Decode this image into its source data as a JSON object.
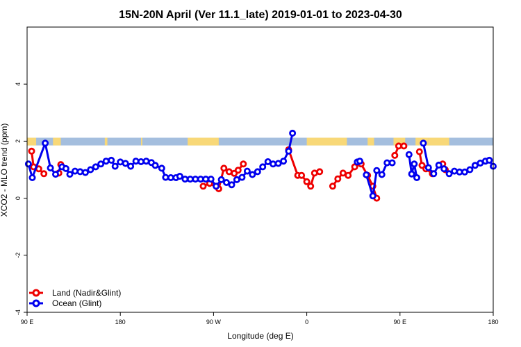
{
  "chart_data": {
    "type": "line",
    "title": "15N-20N April (Ver 11.1_late)   2019-01-01 to 2023-04-30",
    "xlabel": "Longitude (deg E)",
    "ylabel": "XCO2 - MLO trend (ppm)",
    "xlim": [
      90,
      450
    ],
    "ylim": [
      -4,
      6
    ],
    "x_ticks": [
      {
        "value": 90,
        "label": "90 E"
      },
      {
        "value": 162,
        "label": "180"
      },
      {
        "value": 234,
        "label": "90 W"
      },
      {
        "value": 306,
        "label": "0"
      },
      {
        "value": 378,
        "label": "90 E"
      },
      {
        "value": 450,
        "label": "180"
      }
    ],
    "y_ticks": [
      {
        "value": -4,
        "label": "-4"
      },
      {
        "value": -2,
        "label": "-2"
      },
      {
        "value": 0,
        "label": "0"
      },
      {
        "value": 2,
        "label": "2"
      },
      {
        "value": 4,
        "label": "4"
      }
    ],
    "grid": false,
    "legend": "bottom-left",
    "land_band": {
      "y_min": 1.85,
      "y_max": 2.12,
      "ocean_color": "#a4bede",
      "land_color": "#f8d878",
      "land_segments": [
        [
          90,
          97
        ],
        [
          110,
          116
        ],
        [
          150,
          152
        ],
        [
          178,
          179
        ],
        [
          214,
          238
        ],
        [
          306,
          337
        ],
        [
          353,
          358
        ],
        [
          373,
          382
        ],
        [
          390,
          400
        ],
        [
          400,
          416
        ]
      ]
    },
    "series": [
      {
        "name": "Land (Nadir&Glint)",
        "color": "#ee0000",
        "segments": [
          [
            [
              93.5,
              1.65
            ],
            [
              95.0,
              1.1
            ],
            [
              99.0,
              1.03
            ],
            [
              103.0,
              0.86
            ]
          ],
          [
            [
              114.5,
              0.88
            ],
            [
              116.0,
              1.18
            ]
          ],
          [
            [
              226.0,
              0.42
            ],
            [
              231.0,
              0.52
            ],
            [
              238.0,
              0.33
            ],
            [
              242.0,
              1.05
            ],
            [
              246.0,
              0.93
            ],
            [
              250.0,
              0.87
            ],
            [
              253.0,
              0.98
            ],
            [
              257.0,
              1.2
            ]
          ],
          [
            [
              292.0,
              1.7
            ],
            [
              299.0,
              0.8
            ],
            [
              302.0,
              0.8
            ],
            [
              306.0,
              0.58
            ],
            [
              309.0,
              0.42
            ],
            [
              312.0,
              0.88
            ],
            [
              316.0,
              0.93
            ]
          ],
          [
            [
              326.0,
              0.42
            ],
            [
              330.0,
              0.68
            ],
            [
              334.0,
              0.88
            ],
            [
              338.0,
              0.8
            ],
            [
              343.0,
              1.1
            ],
            [
              348.0,
              1.2
            ],
            [
              353.0,
              0.8
            ],
            [
              357.0,
              0.42
            ],
            [
              360.0,
              0.0
            ]
          ],
          [
            [
              374.0,
              1.5
            ],
            [
              377.0,
              1.83
            ],
            [
              381.0,
              1.83
            ]
          ],
          [
            [
              393.0,
              1.63
            ],
            [
              395.0,
              1.15
            ],
            [
              398.0,
              1.03
            ],
            [
              403.0,
              0.86
            ]
          ],
          [
            [
              411.0,
              1.2
            ],
            [
              413.0,
              1.0
            ]
          ]
        ]
      },
      {
        "name": "Ocean (Glint)",
        "color": "#0000ee",
        "segments": [
          [
            [
              91.0,
              1.2
            ],
            [
              94.0,
              0.72
            ],
            [
              104.0,
              1.93
            ],
            [
              108.0,
              1.06
            ],
            [
              112.0,
              0.84
            ],
            [
              117.0,
              1.1
            ],
            [
              120.0,
              1.04
            ],
            [
              123.0,
              0.84
            ],
            [
              127.0,
              0.95
            ],
            [
              131.0,
              0.93
            ],
            [
              135.0,
              0.9
            ],
            [
              139.0,
              1.0
            ],
            [
              143.0,
              1.1
            ],
            [
              147.0,
              1.2
            ],
            [
              151.0,
              1.3
            ],
            [
              155.0,
              1.33
            ],
            [
              158.0,
              1.12
            ],
            [
              162.0,
              1.27
            ],
            [
              166.0,
              1.22
            ],
            [
              170.0,
              1.12
            ],
            [
              174.0,
              1.3
            ],
            [
              178.0,
              1.28
            ],
            [
              182.0,
              1.3
            ],
            [
              186.0,
              1.25
            ],
            [
              189.0,
              1.15
            ],
            [
              194.0,
              1.05
            ],
            [
              197.0,
              0.73
            ],
            [
              201.0,
              0.72
            ],
            [
              205.0,
              0.72
            ],
            [
              208.0,
              0.77
            ],
            [
              212.0,
              0.67
            ],
            [
              216.0,
              0.67
            ],
            [
              220.0,
              0.67
            ],
            [
              224.0,
              0.67
            ],
            [
              228.0,
              0.67
            ],
            [
              232.0,
              0.67
            ],
            [
              236.0,
              0.42
            ],
            [
              240.0,
              0.65
            ],
            [
              244.0,
              0.55
            ],
            [
              248.0,
              0.47
            ],
            [
              252.0,
              0.65
            ],
            [
              256.0,
              0.73
            ],
            [
              260.0,
              0.95
            ],
            [
              264.0,
              0.83
            ],
            [
              268.0,
              0.93
            ],
            [
              272.0,
              1.1
            ],
            [
              276.0,
              1.28
            ],
            [
              280.0,
              1.2
            ],
            [
              284.0,
              1.22
            ],
            [
              288.0,
              1.3
            ],
            [
              292.0,
              1.65
            ],
            [
              295.0,
              2.28
            ]
          ],
          [
            [
              345.0,
              1.27
            ],
            [
              347.0,
              1.3
            ]
          ],
          [
            [
              352.0,
              0.82
            ],
            [
              357.0,
              0.08
            ],
            [
              360.0,
              0.97
            ],
            [
              364.0,
              0.83
            ],
            [
              368.0,
              1.24
            ],
            [
              372.0,
              1.24
            ]
          ],
          [
            [
              385.0,
              1.53
            ],
            [
              387.0,
              0.85
            ],
            [
              389.0,
              1.2
            ],
            [
              391.0,
              0.72
            ]
          ],
          [
            [
              396.0,
              1.93
            ],
            [
              400.0,
              1.07
            ],
            [
              404.0,
              0.86
            ],
            [
              408.0,
              1.16
            ],
            [
              412.0,
              1.03
            ],
            [
              416.0,
              0.86
            ],
            [
              420.0,
              0.95
            ],
            [
              424.0,
              0.92
            ],
            [
              428.0,
              0.92
            ],
            [
              432.0,
              1.0
            ],
            [
              436.0,
              1.15
            ],
            [
              440.0,
              1.23
            ],
            [
              444.0,
              1.3
            ],
            [
              447.0,
              1.33
            ],
            [
              450.0,
              1.12
            ]
          ]
        ]
      }
    ]
  }
}
